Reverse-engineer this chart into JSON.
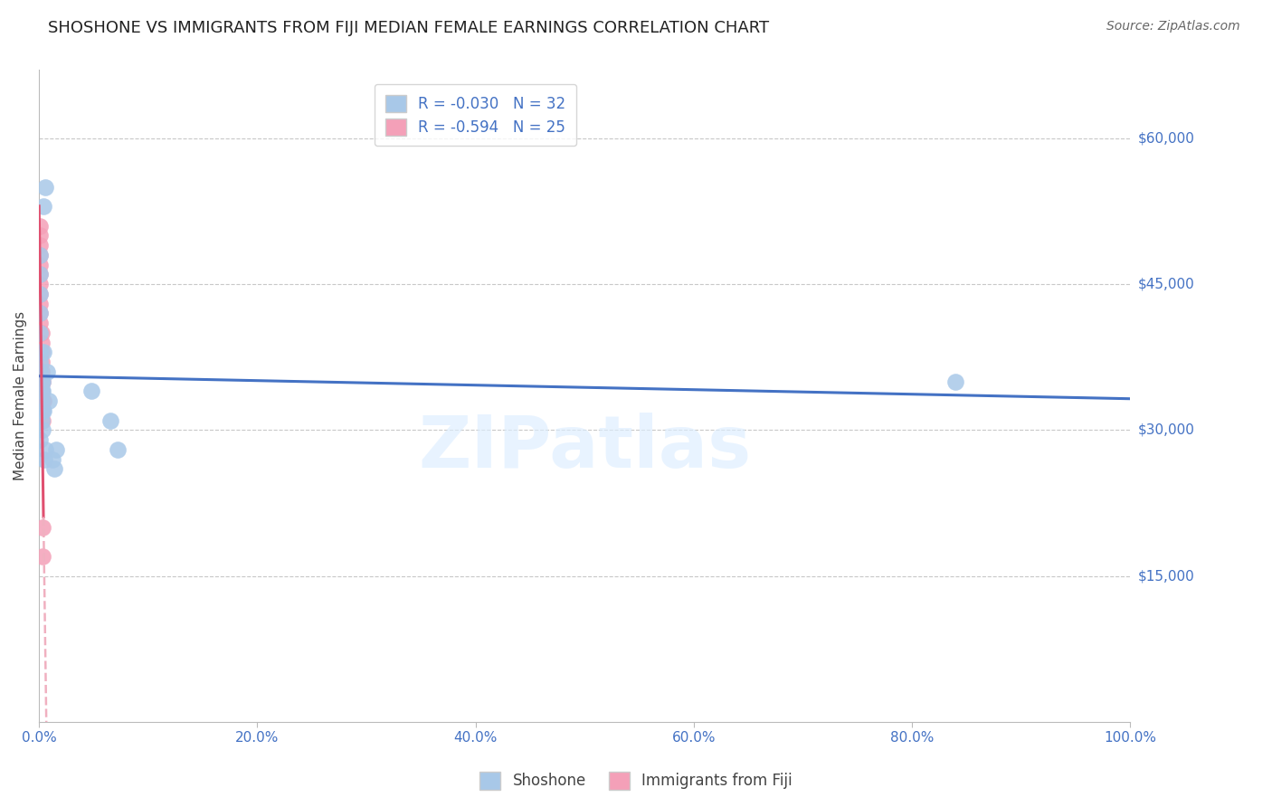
{
  "title": "SHOSHONE VS IMMIGRANTS FROM FIJI MEDIAN FEMALE EARNINGS CORRELATION CHART",
  "source": "Source: ZipAtlas.com",
  "ylabel": "Median Female Earnings",
  "ytick_labels": [
    "$15,000",
    "$30,000",
    "$45,000",
    "$60,000"
  ],
  "ytick_values": [
    15000,
    30000,
    45000,
    60000
  ],
  "ymin": 0,
  "ymax": 67000,
  "xmin": 0.0,
  "xmax": 1.0,
  "shoshone_color": "#a8c8e8",
  "fiji_color": "#f4a0b8",
  "shoshone_line_color": "#4472c4",
  "fiji_line_color": "#e05070",
  "fiji_line_dashed_color": "#f0b0c0",
  "watermark": "ZIPatlas",
  "shoshone_x": [
    0.004,
    0.006,
    0.001,
    0.001,
    0.001,
    0.001,
    0.001,
    0.001,
    0.001,
    0.001,
    0.002,
    0.002,
    0.002,
    0.002,
    0.003,
    0.003,
    0.003,
    0.003,
    0.004,
    0.004,
    0.005,
    0.006,
    0.007,
    0.009,
    0.012,
    0.014,
    0.016,
    0.048,
    0.065,
    0.072,
    0.84,
    0.001
  ],
  "shoshone_y": [
    53000,
    55000,
    48000,
    46000,
    44000,
    42000,
    40000,
    38000,
    37000,
    36000,
    35000,
    34000,
    33000,
    31000,
    35000,
    34000,
    32000,
    30000,
    38000,
    32000,
    27000,
    28000,
    36000,
    33000,
    27000,
    26000,
    28000,
    34000,
    31000,
    28000,
    35000,
    29000
  ],
  "fiji_x": [
    0.001,
    0.001,
    0.001,
    0.001,
    0.001,
    0.001,
    0.001,
    0.001,
    0.001,
    0.001,
    0.001,
    0.002,
    0.002,
    0.002,
    0.002,
    0.002,
    0.002,
    0.002,
    0.002,
    0.002,
    0.003,
    0.003,
    0.003,
    0.003,
    0.004
  ],
  "fiji_y": [
    51000,
    50000,
    49000,
    48000,
    47000,
    46000,
    45000,
    44000,
    43000,
    42000,
    41000,
    40000,
    39000,
    38000,
    37000,
    36000,
    35000,
    34000,
    33000,
    32000,
    31000,
    20000,
    17000,
    35000,
    33000
  ],
  "shoshone_R": -0.03,
  "shoshone_N": 32,
  "fiji_R": -0.594,
  "fiji_N": 25,
  "background_color": "#ffffff",
  "grid_color": "#c8c8c8",
  "title_fontsize": 13,
  "source_fontsize": 10,
  "tick_fontsize": 11,
  "ylabel_fontsize": 11,
  "legend_fontsize": 12
}
